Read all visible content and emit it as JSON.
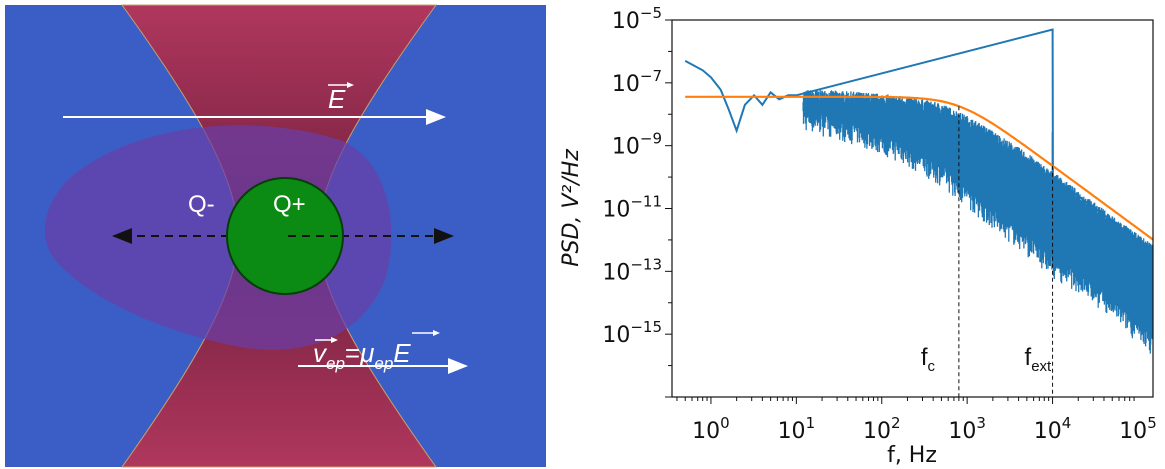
{
  "diagram": {
    "field_label": "E",
    "charge_negative": "Q-",
    "charge_positive": "Q+",
    "velocity_expression": {
      "v": "v",
      "v_sub": "ep",
      "equals": "=",
      "mu": "μ",
      "mu_sub": "ep",
      "e": "E"
    },
    "colors": {
      "background": "#3b5ec6",
      "beam": "#a8365a",
      "cloud": "#6a3ea8",
      "particle": "#0b8a14",
      "arrows": "#ffffff"
    }
  },
  "chart_data": {
    "type": "line",
    "x_scale": "log",
    "y_scale": "log",
    "xlim": [
      0.35,
      150000
    ],
    "ylim": [
      1e-17,
      1e-05
    ],
    "xlabel": "f, Hz",
    "ylabel": "PSD, V²/Hz",
    "xticks": [
      1,
      10,
      100,
      1000,
      10000,
      100000
    ],
    "xtick_labels": [
      {
        "base": "10",
        "exp": "0"
      },
      {
        "base": "10",
        "exp": "1"
      },
      {
        "base": "10",
        "exp": "2"
      },
      {
        "base": "10",
        "exp": "3"
      },
      {
        "base": "10",
        "exp": "4"
      },
      {
        "base": "10",
        "exp": "5"
      }
    ],
    "yticks": [
      1e-15,
      1e-13,
      1e-11,
      1e-09,
      1e-07,
      1e-05
    ],
    "ytick_labels": [
      {
        "base": "10",
        "exp": "−15"
      },
      {
        "base": "10",
        "exp": "−13"
      },
      {
        "base": "10",
        "exp": "−11"
      },
      {
        "base": "10",
        "exp": "−9"
      },
      {
        "base": "10",
        "exp": "−7"
      },
      {
        "base": "10",
        "exp": "−5"
      }
    ],
    "series": [
      {
        "color": "#1f77b4",
        "kind": "measured_psd",
        "x": [
          0.5,
          0.8,
          1.0,
          1.3,
          1.6,
          2.0,
          2.5,
          3.2,
          4,
          5,
          6.3,
          8,
          10,
          20,
          50,
          100,
          200,
          500,
          1000,
          2000,
          5000,
          9900,
          10000,
          10100,
          20000,
          50000,
          100000,
          150000
        ],
        "y": [
          5e-07,
          2.5e-07,
          1.5e-07,
          6e-08,
          1.5e-08,
          3e-09,
          2e-08,
          4e-08,
          2e-08,
          5e-08,
          3e-08,
          4e-08,
          4e-08,
          4e-08,
          3.5e-08,
          3e-08,
          2.5e-08,
          1.5e-08,
          6e-09,
          2e-09,
          4e-10,
          1e-10,
          5e-06,
          1e-10,
          2.5e-11,
          4e-12,
          1e-12,
          5e-13
        ],
        "noise_floor_bottom": [
          5e-07,
          2.5e-07,
          1.5e-07,
          6e-08,
          1.5e-08,
          3e-09,
          5e-09,
          8e-09,
          5e-09,
          5e-09,
          5e-09,
          4e-09,
          3e-09,
          2e-09,
          1e-09,
          5e-10,
          2e-10,
          5e-11,
          1e-11,
          2e-12,
          3e-13,
          6e-14,
          6e-14,
          6e-14,
          2e-14,
          3e-15,
          5e-16,
          2e-16
        ]
      },
      {
        "color": "#ff7f0e",
        "kind": "lorentzian_fit",
        "plateau": 3.6e-08,
        "corner_frequency": 800,
        "x_range": [
          0.5,
          150000
        ]
      }
    ],
    "annotations": [
      {
        "main": "f",
        "sub": "c",
        "x": 800
      },
      {
        "main": "f",
        "sub": "ext",
        "x": 10000
      }
    ]
  }
}
